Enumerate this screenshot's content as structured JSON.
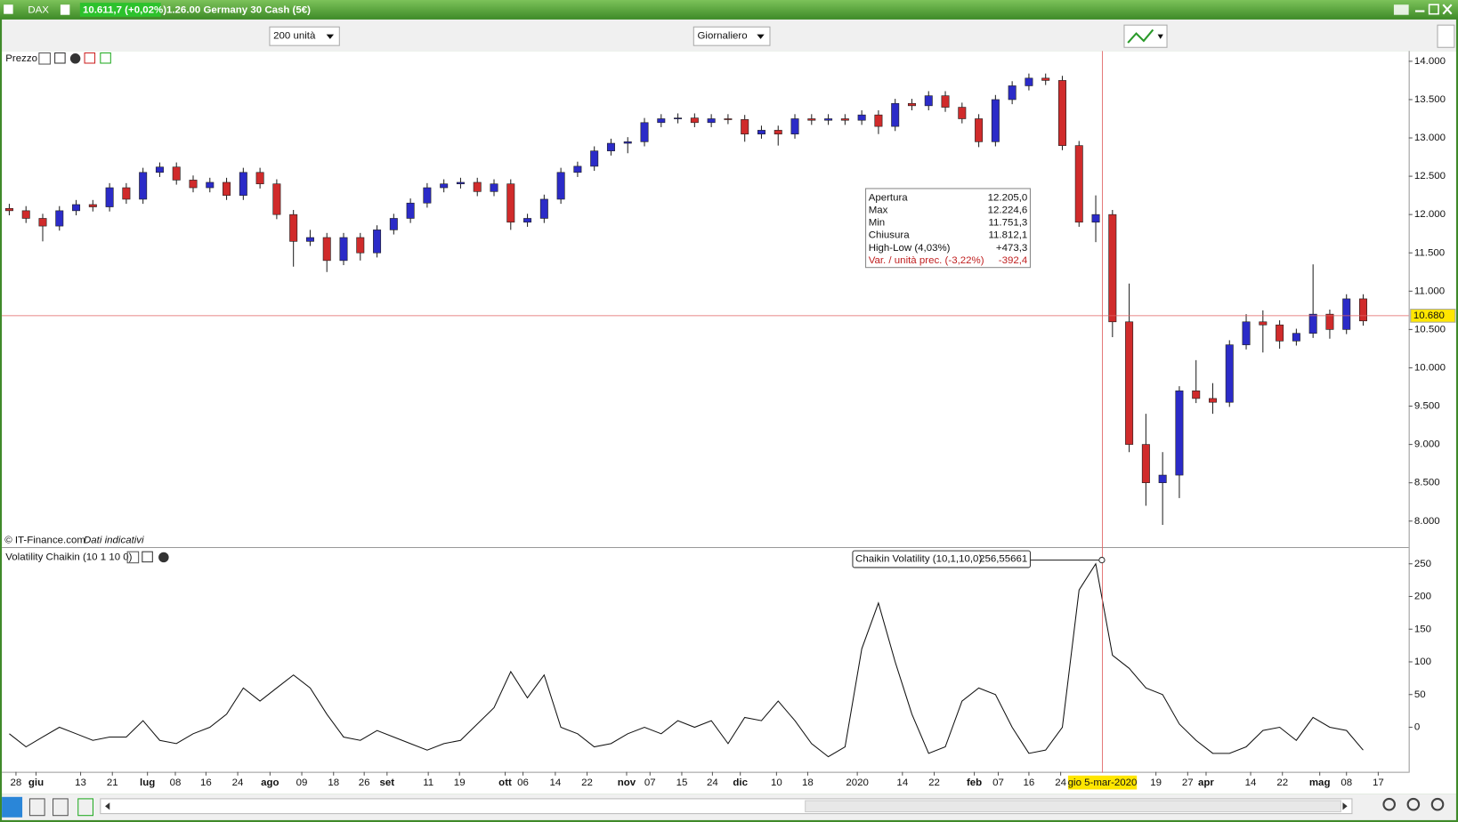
{
  "window": {
    "symbol": "DAX",
    "quote": "10.611,7 (+0,02%)",
    "instrument": "1.26.00 Germany 30 Cash (5€)"
  },
  "toolbar": {
    "units": "200 unità",
    "period": "Giornaliero"
  },
  "price_panel": {
    "title": "Prezzo",
    "copyright": "© IT-Finance.com",
    "note": "Dati indicativi"
  },
  "volatility_panel": {
    "title": "Volatility Chaikin (10 1 10 0)",
    "tooltip_name": "Chaikin Volatility (10,1,10,0)",
    "tooltip_value": "256,55661"
  },
  "tooltip": {
    "rows": [
      [
        "Apertura",
        "12.205,0"
      ],
      [
        "Max",
        "12.224,6"
      ],
      [
        "Min",
        "11.751,3"
      ],
      [
        "Chiusura",
        "11.812,1"
      ],
      [
        "High-Low (4,03%)",
        "+473,3"
      ],
      [
        "Var. / unità prec. (-3,22%)",
        "-392,4"
      ]
    ]
  },
  "cursor": {
    "x": 196.2,
    "price": 10680,
    "price_label": "10.680",
    "date_label": "gio 5-mar-2020"
  },
  "chart_data": [
    {
      "type": "candlestick",
      "up_color": "#2b2bc8",
      "down_color": "#d02b2b",
      "x": [
        0,
        3,
        6,
        9,
        12,
        15,
        18,
        21,
        24,
        27,
        30,
        33,
        36,
        39,
        42,
        45,
        48,
        51,
        54,
        57,
        60,
        63,
        66,
        69,
        72,
        75,
        78,
        81,
        84,
        87,
        90,
        93,
        96,
        99,
        102,
        105,
        108,
        111,
        114,
        117,
        120,
        123,
        126,
        129,
        132,
        135,
        138,
        141,
        144,
        147,
        150,
        153,
        156,
        159,
        162,
        165,
        168,
        171,
        174,
        177,
        180,
        183,
        186,
        189,
        192,
        195,
        198,
        201,
        204,
        207,
        210,
        213,
        216,
        219,
        222,
        225,
        228,
        231,
        234,
        237,
        240,
        243
      ],
      "ohlc": [
        [
          12080,
          12140,
          11990,
          12050
        ],
        [
          12050,
          12110,
          11890,
          11950
        ],
        [
          11950,
          12010,
          11650,
          11850
        ],
        [
          11850,
          12110,
          11790,
          12050
        ],
        [
          12050,
          12190,
          11990,
          12130
        ],
        [
          12130,
          12190,
          12040,
          12100
        ],
        [
          12100,
          12410,
          12040,
          12350
        ],
        [
          12350,
          12410,
          12140,
          12200
        ],
        [
          12200,
          12610,
          12140,
          12550
        ],
        [
          12550,
          12680,
          12490,
          12620
        ],
        [
          12620,
          12680,
          12390,
          12450
        ],
        [
          12450,
          12510,
          12290,
          12350
        ],
        [
          12350,
          12480,
          12290,
          12420
        ],
        [
          12420,
          12480,
          12190,
          12250
        ],
        [
          12250,
          12610,
          12190,
          12550
        ],
        [
          12550,
          12610,
          12340,
          12400
        ],
        [
          12400,
          12460,
          11940,
          12000
        ],
        [
          12000,
          12060,
          11320,
          11650
        ],
        [
          11650,
          11800,
          11590,
          11700
        ],
        [
          11700,
          11760,
          11250,
          11400
        ],
        [
          11400,
          11760,
          11340,
          11700
        ],
        [
          11700,
          11760,
          11400,
          11500
        ],
        [
          11500,
          11860,
          11440,
          11800
        ],
        [
          11800,
          12010,
          11740,
          11950
        ],
        [
          11950,
          12210,
          11890,
          12150
        ],
        [
          12150,
          12410,
          12090,
          12350
        ],
        [
          12350,
          12460,
          12290,
          12400
        ],
        [
          12400,
          12480,
          12340,
          12420
        ],
        [
          12420,
          12480,
          12240,
          12300
        ],
        [
          12300,
          12460,
          12240,
          12400
        ],
        [
          12400,
          12460,
          11800,
          11900
        ],
        [
          11900,
          12010,
          11840,
          11950
        ],
        [
          11950,
          12260,
          11890,
          12200
        ],
        [
          12200,
          12610,
          12140,
          12550
        ],
        [
          12550,
          12690,
          12490,
          12630
        ],
        [
          12630,
          12890,
          12570,
          12830
        ],
        [
          12830,
          12990,
          12770,
          12930
        ],
        [
          12930,
          13010,
          12800,
          12950
        ],
        [
          12950,
          13260,
          12890,
          13200
        ],
        [
          13200,
          13310,
          13140,
          13250
        ],
        [
          13250,
          13320,
          13190,
          13260
        ],
        [
          13260,
          13320,
          13140,
          13200
        ],
        [
          13200,
          13310,
          13140,
          13250
        ],
        [
          13250,
          13310,
          13180,
          13240
        ],
        [
          13240,
          13300,
          12950,
          13050
        ],
        [
          13050,
          13160,
          12990,
          13100
        ],
        [
          13100,
          13160,
          12900,
          13050
        ],
        [
          13050,
          13310,
          12990,
          13250
        ],
        [
          13250,
          13310,
          13170,
          13230
        ],
        [
          13230,
          13310,
          13170,
          13250
        ],
        [
          13250,
          13310,
          13170,
          13230
        ],
        [
          13230,
          13360,
          13170,
          13300
        ],
        [
          13300,
          13360,
          13050,
          13150
        ],
        [
          13150,
          13510,
          13090,
          13450
        ],
        [
          13450,
          13510,
          13360,
          13420
        ],
        [
          13420,
          13610,
          13360,
          13550
        ],
        [
          13550,
          13610,
          13340,
          13400
        ],
        [
          13400,
          13460,
          13190,
          13250
        ],
        [
          13250,
          13310,
          12880,
          12950
        ],
        [
          12950,
          13560,
          12890,
          13500
        ],
        [
          13500,
          13740,
          13440,
          13680
        ],
        [
          13680,
          13840,
          13620,
          13780
        ],
        [
          13780,
          13840,
          13690,
          13750
        ],
        [
          13750,
          13810,
          12840,
          12900
        ],
        [
          12900,
          12960,
          11840,
          11900
        ],
        [
          11900,
          12250,
          11640,
          12000
        ],
        [
          12000,
          12060,
          10400,
          10600
        ],
        [
          10600,
          11100,
          8900,
          9000
        ],
        [
          9000,
          9400,
          8200,
          8500
        ],
        [
          8500,
          8900,
          7950,
          8600
        ],
        [
          8600,
          9760,
          8300,
          9700
        ],
        [
          9700,
          10100,
          9540,
          9600
        ],
        [
          9600,
          9800,
          9400,
          9550
        ],
        [
          9550,
          10360,
          9490,
          10300
        ],
        [
          10300,
          10700,
          10240,
          10600
        ],
        [
          10600,
          10750,
          10200,
          10560
        ],
        [
          10560,
          10620,
          10250,
          10350
        ],
        [
          10350,
          10510,
          10290,
          10450
        ],
        [
          10450,
          11350,
          10390,
          10700
        ],
        [
          10700,
          10760,
          10380,
          10500
        ],
        [
          10500,
          10960,
          10440,
          10900
        ],
        [
          10900,
          10960,
          10550,
          10612
        ]
      ],
      "xlim": [
        -1.333,
        251.17
      ],
      "ylim": [
        7673,
        14133
      ],
      "yticks": [
        {
          "value": 14000,
          "label": "14.000"
        },
        {
          "value": 13500,
          "label": "13.500"
        },
        {
          "value": 13000,
          "label": "13.000"
        },
        {
          "value": 12500,
          "label": "12.500"
        },
        {
          "value": 12000,
          "label": "12.000"
        },
        {
          "value": 11500,
          "label": "11.500"
        },
        {
          "value": 11000,
          "label": "11.000"
        },
        {
          "value": 10500,
          "label": "10.500"
        },
        {
          "value": 10000,
          "label": "10.000"
        },
        {
          "value": 9500,
          "label": "9.500"
        },
        {
          "value": 9000,
          "label": "9.000"
        },
        {
          "value": 8500,
          "label": "8.500"
        },
        {
          "value": 8000,
          "label": "8.000"
        }
      ]
    },
    {
      "type": "line",
      "color": "#111111",
      "x": [
        0,
        3,
        6,
        9,
        12,
        15,
        18,
        21,
        24,
        27,
        30,
        33,
        36,
        39,
        42,
        45,
        48,
        51,
        54,
        57,
        60,
        63,
        66,
        69,
        72,
        75,
        78,
        81,
        84,
        87,
        90,
        93,
        96,
        99,
        102,
        105,
        108,
        111,
        114,
        117,
        120,
        123,
        126,
        129,
        132,
        135,
        138,
        141,
        144,
        147,
        150,
        153,
        156,
        159,
        162,
        165,
        168,
        171,
        174,
        177,
        180,
        183,
        186,
        189,
        192,
        195,
        198,
        201,
        204,
        207,
        210,
        213,
        216,
        219,
        222,
        225,
        228,
        231,
        234,
        237,
        240,
        243
      ],
      "values": [
        -10,
        -30,
        -15,
        0,
        -10,
        -20,
        -15,
        -15,
        10,
        -20,
        -25,
        -10,
        0,
        20,
        60,
        40,
        60,
        80,
        60,
        20,
        -15,
        -20,
        -5,
        -15,
        -25,
        -35,
        -25,
        -20,
        5,
        30,
        85,
        45,
        80,
        0,
        -10,
        -30,
        -25,
        -10,
        0,
        -10,
        10,
        0,
        10,
        -25,
        15,
        10,
        40,
        10,
        -25,
        -45,
        -30,
        120,
        190,
        100,
        20,
        -40,
        -30,
        40,
        60,
        50,
        0,
        -40,
        -35,
        0,
        210,
        250,
        110,
        90,
        60,
        50,
        5,
        -20,
        -40,
        -40,
        -30,
        -5,
        0,
        -20,
        15,
        0,
        -5,
        -35
      ],
      "xlim": [
        -1.333,
        251.17
      ],
      "ylim": [
        -66.8,
        271.3
      ],
      "yticks": [
        250,
        200,
        150,
        100,
        50,
        0
      ],
      "xticks": [
        {
          "value": 1.2,
          "label": "28"
        },
        {
          "value": 4.8,
          "label": "giu"
        },
        {
          "value": 12.8,
          "label": "13"
        },
        {
          "value": 18.5,
          "label": "21"
        },
        {
          "value": 24.8,
          "label": "lug"
        },
        {
          "value": 29.8,
          "label": "08"
        },
        {
          "value": 35.3,
          "label": "16"
        },
        {
          "value": 41,
          "label": "24"
        },
        {
          "value": 46.8,
          "label": "ago"
        },
        {
          "value": 52.5,
          "label": "09"
        },
        {
          "value": 58.2,
          "label": "18"
        },
        {
          "value": 63.7,
          "label": "26"
        },
        {
          "value": 67.8,
          "label": "set"
        },
        {
          "value": 75.2,
          "label": "11"
        },
        {
          "value": 80.8,
          "label": "19"
        },
        {
          "value": 89,
          "label": "ott"
        },
        {
          "value": 92.2,
          "label": "06"
        },
        {
          "value": 98,
          "label": "14"
        },
        {
          "value": 103.7,
          "label": "22"
        },
        {
          "value": 110.8,
          "label": "nov"
        },
        {
          "value": 115,
          "label": "07"
        },
        {
          "value": 120.7,
          "label": "15"
        },
        {
          "value": 126.2,
          "label": "24"
        },
        {
          "value": 131.2,
          "label": "dic"
        },
        {
          "value": 137.7,
          "label": "10"
        },
        {
          "value": 143.3,
          "label": "18"
        },
        {
          "value": 152.2,
          "label": "2020"
        },
        {
          "value": 160.3,
          "label": "14"
        },
        {
          "value": 166,
          "label": "22"
        },
        {
          "value": 173.2,
          "label": "feb"
        },
        {
          "value": 177.5,
          "label": "07"
        },
        {
          "value": 183,
          "label": "16"
        },
        {
          "value": 188.7,
          "label": "24"
        },
        {
          "value": 205.8,
          "label": "19"
        },
        {
          "value": 211.5,
          "label": "27"
        },
        {
          "value": 214.8,
          "label": "apr"
        },
        {
          "value": 222.8,
          "label": "14"
        },
        {
          "value": 228.5,
          "label": "22"
        },
        {
          "value": 235.2,
          "label": "mag"
        },
        {
          "value": 240,
          "label": "08"
        },
        {
          "value": 245.7,
          "label": "17"
        }
      ]
    }
  ]
}
